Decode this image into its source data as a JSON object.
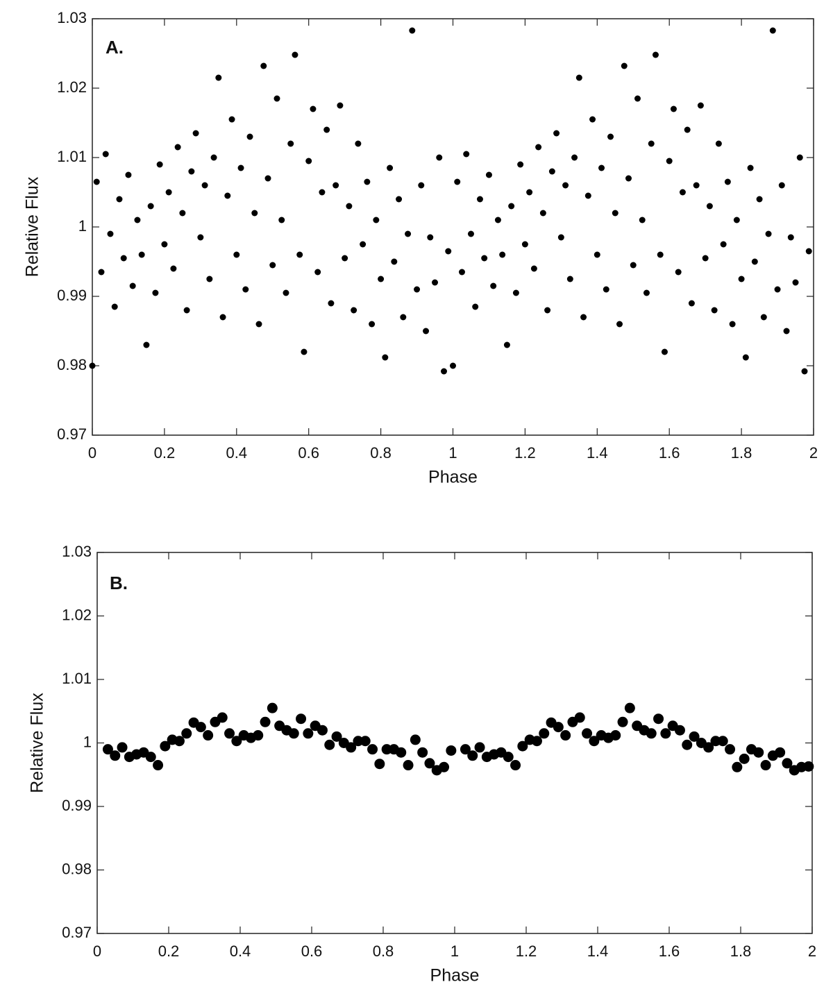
{
  "chart_data": [
    {
      "type": "scatter",
      "annotation": "A.",
      "xlabel": "Phase",
      "ylabel": "Relative Flux",
      "color": "#000000",
      "annotation_color": "#e03a24",
      "xlim": [
        0,
        2
      ],
      "ylim": [
        0.97,
        1.03
      ],
      "xticks": [
        0,
        0.2,
        0.4,
        0.6,
        0.8,
        1,
        1.2,
        1.4,
        1.6,
        1.8,
        2
      ],
      "yticks": [
        0.97,
        0.98,
        0.99,
        1,
        1.01,
        1.02,
        1.03
      ],
      "x": [
        0.0,
        0.012,
        0.025,
        0.037,
        0.05,
        0.062,
        0.075,
        0.087,
        0.1,
        0.112,
        0.125,
        0.137,
        0.15,
        0.162,
        0.175,
        0.187,
        0.2,
        0.212,
        0.225,
        0.237,
        0.25,
        0.262,
        0.275,
        0.287,
        0.3,
        0.312,
        0.325,
        0.337,
        0.35,
        0.362,
        0.375,
        0.387,
        0.4,
        0.412,
        0.425,
        0.437,
        0.45,
        0.462,
        0.475,
        0.487,
        0.5,
        0.512,
        0.525,
        0.537,
        0.55,
        0.562,
        0.575,
        0.587,
        0.6,
        0.612,
        0.625,
        0.637,
        0.65,
        0.662,
        0.675,
        0.687,
        0.7,
        0.712,
        0.725,
        0.737,
        0.75,
        0.762,
        0.775,
        0.787,
        0.8,
        0.812,
        0.825,
        0.837,
        0.85,
        0.862,
        0.875,
        0.887,
        0.9,
        0.912,
        0.925,
        0.937,
        0.95,
        0.962,
        0.975,
        0.987,
        1.0,
        1.012,
        1.025,
        1.037,
        1.05,
        1.062,
        1.075,
        1.087,
        1.1,
        1.112,
        1.125,
        1.137,
        1.15,
        1.162,
        1.175,
        1.187,
        1.2,
        1.212,
        1.225,
        1.237,
        1.25,
        1.262,
        1.275,
        1.287,
        1.3,
        1.312,
        1.325,
        1.337,
        1.35,
        1.362,
        1.375,
        1.387,
        1.4,
        1.412,
        1.425,
        1.437,
        1.45,
        1.462,
        1.475,
        1.487,
        1.5,
        1.512,
        1.525,
        1.537,
        1.55,
        1.562,
        1.575,
        1.587,
        1.6,
        1.612,
        1.625,
        1.637,
        1.65,
        1.662,
        1.675,
        1.687,
        1.7,
        1.712,
        1.725,
        1.737,
        1.75,
        1.762,
        1.775,
        1.787,
        1.8,
        1.812,
        1.825,
        1.837,
        1.85,
        1.862,
        1.875,
        1.887,
        1.9,
        1.912,
        1.925,
        1.937,
        1.95,
        1.962,
        1.975,
        1.987
      ],
      "values": [
        0.98,
        1.0065,
        0.9935,
        1.0105,
        0.999,
        0.9885,
        1.004,
        0.9955,
        1.0075,
        0.9915,
        1.001,
        0.996,
        0.983,
        1.003,
        0.9905,
        1.009,
        0.9975,
        1.005,
        0.994,
        1.0115,
        1.002,
        0.988,
        1.008,
        1.0135,
        0.9985,
        1.006,
        0.9925,
        1.01,
        1.0215,
        0.987,
        1.0045,
        1.0155,
        0.996,
        1.0085,
        0.991,
        1.013,
        1.002,
        0.986,
        1.0232,
        1.007,
        0.9945,
        1.0185,
        1.001,
        0.9905,
        1.012,
        1.0248,
        0.996,
        0.982,
        1.0095,
        1.017,
        0.9935,
        1.005,
        1.014,
        0.989,
        1.006,
        1.0175,
        0.9955,
        1.003,
        0.988,
        1.012,
        0.9975,
        1.0065,
        0.986,
        1.001,
        0.9925,
        0.9812,
        1.0085,
        0.995,
        1.004,
        0.987,
        0.999,
        1.0283,
        0.991,
        1.006,
        0.985,
        0.9985,
        0.992,
        1.01,
        0.9792,
        0.9965,
        0.98,
        1.0065,
        0.9935,
        1.0105,
        0.999,
        0.9885,
        1.004,
        0.9955,
        1.0075,
        0.9915,
        1.001,
        0.996,
        0.983,
        1.003,
        0.9905,
        1.009,
        0.9975,
        1.005,
        0.994,
        1.0115,
        1.002,
        0.988,
        1.008,
        1.0135,
        0.9985,
        1.006,
        0.9925,
        1.01,
        1.0215,
        0.987,
        1.0045,
        1.0155,
        0.996,
        1.0085,
        0.991,
        1.013,
        1.002,
        0.986,
        1.0232,
        1.007,
        0.9945,
        1.0185,
        1.001,
        0.9905,
        1.012,
        1.0248,
        0.996,
        0.982,
        1.0095,
        1.017,
        0.9935,
        1.005,
        1.014,
        0.989,
        1.006,
        1.0175,
        0.9955,
        1.003,
        0.988,
        1.012,
        0.9975,
        1.0065,
        0.986,
        1.001,
        0.9925,
        0.9812,
        1.0085,
        0.995,
        1.004,
        0.987,
        0.999,
        1.0283,
        0.991,
        1.006,
        0.985,
        0.9985,
        0.992,
        1.01,
        0.9792,
        0.9965
      ]
    },
    {
      "type": "scatter",
      "annotation": "B.",
      "xlabel": "Phase",
      "ylabel": "Relative Flux",
      "color": "#000000",
      "annotation_color": "#e03a24",
      "xlim": [
        0,
        2
      ],
      "ylim": [
        0.97,
        1.03
      ],
      "xticks": [
        0,
        0.2,
        0.4,
        0.6,
        0.8,
        1,
        1.2,
        1.4,
        1.6,
        1.8,
        2
      ],
      "yticks": [
        0.97,
        0.98,
        0.99,
        1,
        1.01,
        1.02,
        1.03
      ],
      "x": [
        0.03,
        0.05,
        0.07,
        0.09,
        0.11,
        0.13,
        0.15,
        0.17,
        0.19,
        0.21,
        0.23,
        0.25,
        0.27,
        0.29,
        0.31,
        0.33,
        0.35,
        0.37,
        0.39,
        0.41,
        0.43,
        0.45,
        0.47,
        0.49,
        0.51,
        0.53,
        0.55,
        0.57,
        0.59,
        0.61,
        0.63,
        0.65,
        0.67,
        0.69,
        0.71,
        0.73,
        0.75,
        0.77,
        0.79,
        0.81,
        0.83,
        0.85,
        0.87,
        0.89,
        0.91,
        0.93,
        0.95,
        0.97,
        0.99,
        1.03,
        1.05,
        1.07,
        1.09,
        1.11,
        1.13,
        1.15,
        1.17,
        1.19,
        1.21,
        1.23,
        1.25,
        1.27,
        1.29,
        1.31,
        1.33,
        1.35,
        1.37,
        1.39,
        1.41,
        1.43,
        1.45,
        1.47,
        1.49,
        1.51,
        1.53,
        1.55,
        1.57,
        1.59,
        1.61,
        1.63,
        1.65,
        1.67,
        1.69,
        1.71,
        1.73,
        1.75,
        1.77,
        1.79,
        1.81,
        1.83,
        1.85,
        1.87,
        1.89,
        1.91,
        1.93,
        1.95,
        1.97,
        1.99
      ],
      "values": [
        0.999,
        0.998,
        0.9993,
        0.9978,
        0.9982,
        0.9985,
        0.9978,
        0.9965,
        0.9995,
        1.0005,
        1.0003,
        1.0015,
        1.0032,
        1.0025,
        1.0012,
        1.0033,
        1.004,
        1.0015,
        1.0003,
        1.0012,
        1.0008,
        1.0012,
        1.0033,
        1.0055,
        1.0027,
        1.002,
        1.0015,
        1.0038,
        1.0015,
        1.0027,
        1.002,
        0.9997,
        1.001,
        1.0,
        0.9993,
        1.0003,
        1.0003,
        0.999,
        0.9967,
        0.999,
        0.999,
        0.9985,
        0.9965,
        1.0005,
        0.9985,
        0.9968,
        0.9957,
        0.9962,
        0.9988,
        0.999,
        0.998,
        0.9993,
        0.9978,
        0.9982,
        0.9985,
        0.9978,
        0.9965,
        0.9995,
        1.0005,
        1.0003,
        1.0015,
        1.0032,
        1.0025,
        1.0012,
        1.0033,
        1.004,
        1.0015,
        1.0003,
        1.0012,
        1.0008,
        1.0012,
        1.0033,
        1.0055,
        1.0027,
        1.002,
        1.0015,
        1.0038,
        1.0015,
        1.0027,
        1.002,
        0.9997,
        1.001,
        1.0,
        0.9993,
        1.0003,
        1.0003,
        0.999,
        0.9962,
        0.9975,
        0.999,
        0.9985,
        0.9965,
        0.998,
        0.9985,
        0.9968,
        0.9957,
        0.9962,
        0.9963
      ]
    }
  ]
}
